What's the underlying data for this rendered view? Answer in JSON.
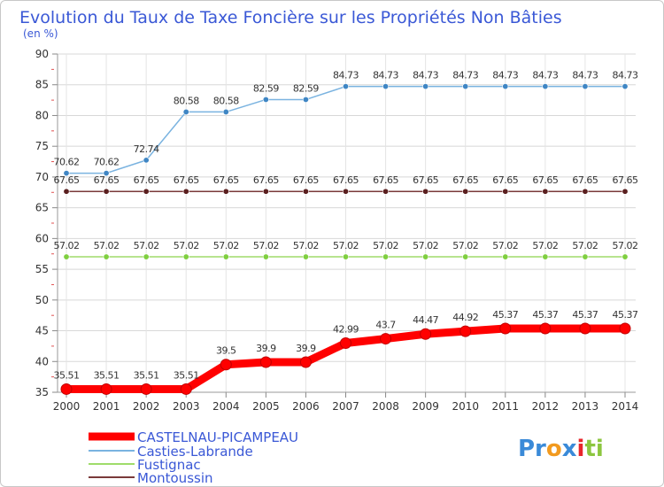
{
  "chart_data": {
    "type": "line",
    "title": "Evolution du Taux de Taxe Foncière sur les Propriétés Non Bâties",
    "ylabel": "(en %)",
    "xlabel": "",
    "categories": [
      "2000",
      "2001",
      "2002",
      "2003",
      "2004",
      "2005",
      "2006",
      "2007",
      "2008",
      "2009",
      "2010",
      "2011",
      "2012",
      "2013",
      "2014"
    ],
    "ylim": [
      35,
      90
    ],
    "yticks": [
      35,
      40,
      45,
      50,
      55,
      60,
      65,
      70,
      75,
      80,
      85,
      90
    ],
    "grid": true,
    "series": [
      {
        "name": "CASTELNAU-PICAMPEAU",
        "color": "#ff0000",
        "marker": "#ff0000",
        "values": [
          35.51,
          35.51,
          35.51,
          35.51,
          39.5,
          39.9,
          39.9,
          42.99,
          43.7,
          44.47,
          44.92,
          45.37,
          45.37,
          45.37,
          45.37
        ],
        "labels": [
          "35.51",
          "35.51",
          "35.51",
          "35.51",
          "39.5",
          "39.9",
          "39.9",
          "42.99",
          "43.7",
          "44.47",
          "44.92",
          "45.37",
          "45.37",
          "45.37",
          "45.37"
        ]
      },
      {
        "name": "Casties-Labrande",
        "color": "#7ab3e0",
        "marker": "#3f86c4",
        "values": [
          70.62,
          70.62,
          72.74,
          80.58,
          80.58,
          82.59,
          82.59,
          84.73,
          84.73,
          84.73,
          84.73,
          84.73,
          84.73,
          84.73,
          84.73
        ],
        "labels": [
          "70.62",
          "70.62",
          "72.74",
          "80.58",
          "80.58",
          "82.59",
          "82.59",
          "84.73",
          "84.73",
          "84.73",
          "84.73",
          "84.73",
          "84.73",
          "84.73",
          "84.73"
        ]
      },
      {
        "name": "Fustignac",
        "color": "#9fdc6a",
        "marker": "#7fcf3f",
        "values": [
          57.02,
          57.02,
          57.02,
          57.02,
          57.02,
          57.02,
          57.02,
          57.02,
          57.02,
          57.02,
          57.02,
          57.02,
          57.02,
          57.02,
          57.02
        ],
        "labels": [
          "57.02",
          "57.02",
          "57.02",
          "57.02",
          "57.02",
          "57.02",
          "57.02",
          "57.02",
          "57.02",
          "57.02",
          "57.02",
          "57.02",
          "57.02",
          "57.02",
          "57.02"
        ]
      },
      {
        "name": "Montoussin",
        "color": "#7a3a3a",
        "marker": "#5a1f1f",
        "values": [
          67.65,
          67.65,
          67.65,
          67.65,
          67.65,
          67.65,
          67.65,
          67.65,
          67.65,
          67.65,
          67.65,
          67.65,
          67.65,
          67.65,
          67.65
        ],
        "labels": [
          "67.65",
          "67.65",
          "67.65",
          "67.65",
          "67.65",
          "67.65",
          "67.65",
          "67.65",
          "67.65",
          "67.65",
          "67.65",
          "67.65",
          "67.65",
          "67.65",
          "67.65"
        ]
      }
    ]
  },
  "branding": {
    "logo": "Proxiti"
  }
}
